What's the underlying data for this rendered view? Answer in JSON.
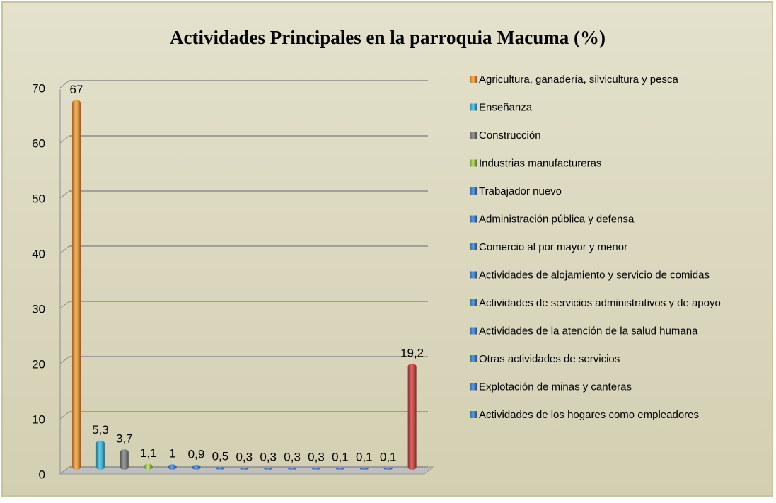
{
  "chart_data": {
    "type": "bar",
    "title": "Actividades Principales en la parroquia Macuma (%)",
    "categories": [
      "Agricultura, ganadería, silvicultura y pesca",
      "Enseñanza",
      "Construcción",
      "Industrias manufactureras",
      "Trabajador nuevo",
      "Administración pública y defensa",
      "Comercio al por mayor y menor",
      "Actividades de alojamiento y servicio de comidas",
      "Actividades de servicios administrativos y de apoyo",
      "Actividades de la atención de la salud humana",
      "Otras actividades de servicios",
      "Explotación de minas y canteras",
      "Actividades de los hogares como empleadores",
      null,
      null
    ],
    "values": [
      67,
      5.3,
      3.7,
      1.1,
      1,
      0.9,
      0.5,
      0.3,
      0.3,
      0.3,
      0.3,
      0.1,
      0.1,
      0.1,
      19.2
    ],
    "value_labels": [
      "67",
      "5,3",
      "3,7",
      "1,1",
      "1",
      "0,9",
      "0,5",
      "0,3",
      "0,3",
      "0,3",
      "0,3",
      "0,1",
      "0,1",
      "0,1",
      "19,2"
    ],
    "colors": [
      "#f79646",
      "#4bacc6",
      "#808080",
      "#9bbb59",
      "#4f81bd",
      "#4f81bd",
      "#4f81bd",
      "#4f81bd",
      "#4f81bd",
      "#4f81bd",
      "#4f81bd",
      "#4f81bd",
      "#4f81bd",
      "#4f81bd",
      "#c0504d"
    ],
    "ylim": [
      0,
      70
    ],
    "yticks": [
      0,
      10,
      20,
      30,
      40,
      50,
      60,
      70
    ],
    "grid": true,
    "legend": "right"
  }
}
